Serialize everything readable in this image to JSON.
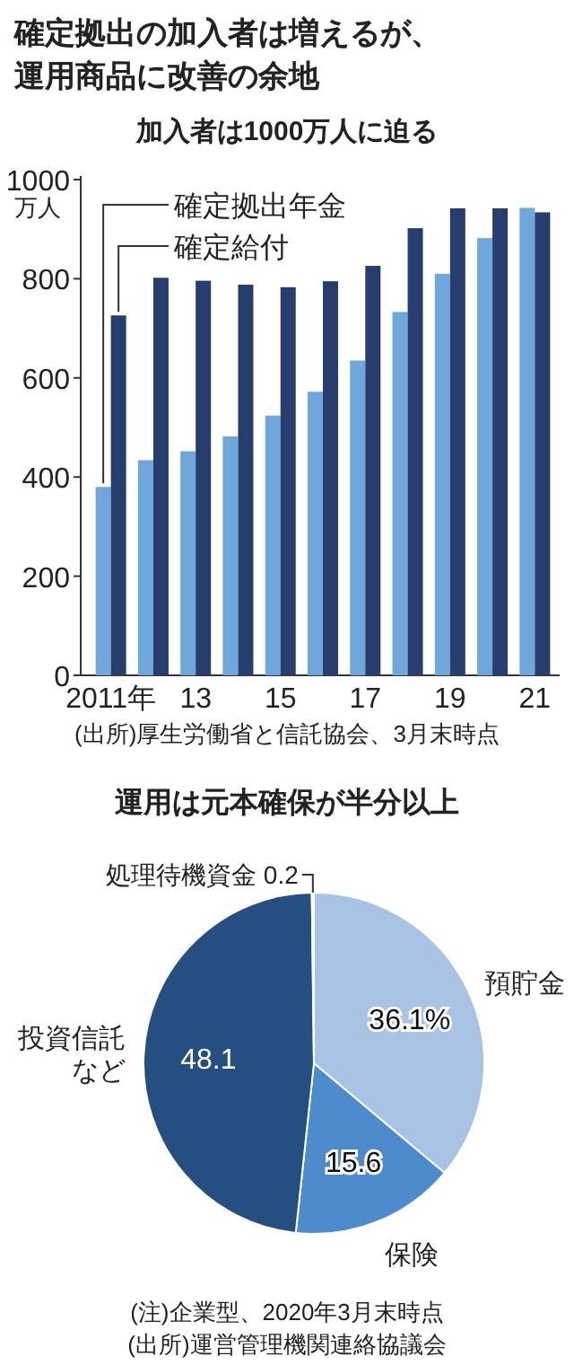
{
  "chart_data": [
    {
      "type": "bar",
      "title": "確定拠出の加入者は増えるが、運用商品に改善の余地",
      "subtitle": "加入者は1000万人に迫る",
      "ylabel": "万人",
      "categories": [
        "2011年",
        null,
        "13",
        null,
        "15",
        null,
        "17",
        null,
        "19",
        null,
        "21"
      ],
      "series": [
        {
          "name": "確定拠出年金",
          "color": "#6fa6dc",
          "values": [
            380,
            434,
            452,
            482,
            524,
            572,
            635,
            733,
            810,
            882,
            943
          ]
        },
        {
          "name": "確定給付",
          "color": "#263d6e",
          "values": [
            726,
            802,
            796,
            788,
            783,
            795,
            826,
            902,
            942,
            942,
            934
          ]
        }
      ],
      "ylim": [
        0,
        1000
      ],
      "yticks": [
        0,
        200,
        400,
        600,
        800,
        1000
      ],
      "legend": "top left",
      "annotations": [
        "(出所)厚生労働省と信託協会、3月末時点"
      ]
    },
    {
      "type": "pie",
      "title": "運用は元本確保が半分以上",
      "categories": [
        "預貯金",
        "保険",
        "投資信託など",
        "処理待機資金"
      ],
      "values": [
        36.1,
        15.6,
        48.1,
        0.2
      ],
      "colors": [
        "#a8c3e4",
        "#4e8bcd",
        "#254f80",
        "#d9e4f1"
      ],
      "value_labels": [
        "36.1%",
        "15.6",
        "48.1",
        "0.2"
      ],
      "annotations": [
        "(注)企業型、2020年3月末時点",
        "(出所)運営管理機関連絡協議会"
      ]
    }
  ]
}
